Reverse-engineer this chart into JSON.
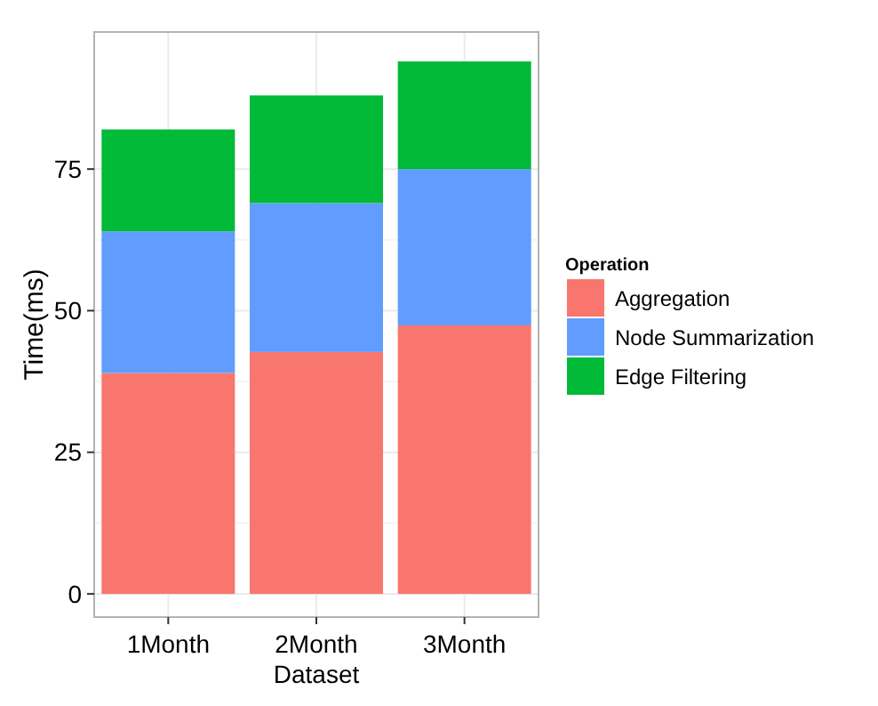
{
  "chart_data": {
    "type": "bar",
    "stacked": true,
    "xlabel": "Dataset",
    "ylabel": "Time(ms)",
    "legend_title": "Operation",
    "legend": "right",
    "categories": [
      "1Month",
      "2Month",
      "3Month"
    ],
    "series": [
      {
        "name": "Aggregation",
        "color": "#f8766d",
        "values": [
          39,
          42.7,
          47.4
        ]
      },
      {
        "name": "Node Summarization",
        "color": "#619cff",
        "values": [
          25,
          26.3,
          27.6
        ]
      },
      {
        "name": "Edge Filtering",
        "color": "#00ba38",
        "values": [
          18,
          19,
          19
        ]
      }
    ],
    "ylim": [
      -4.1,
      99.2
    ],
    "yticks": [
      0,
      25,
      50,
      75
    ],
    "grid": true
  }
}
